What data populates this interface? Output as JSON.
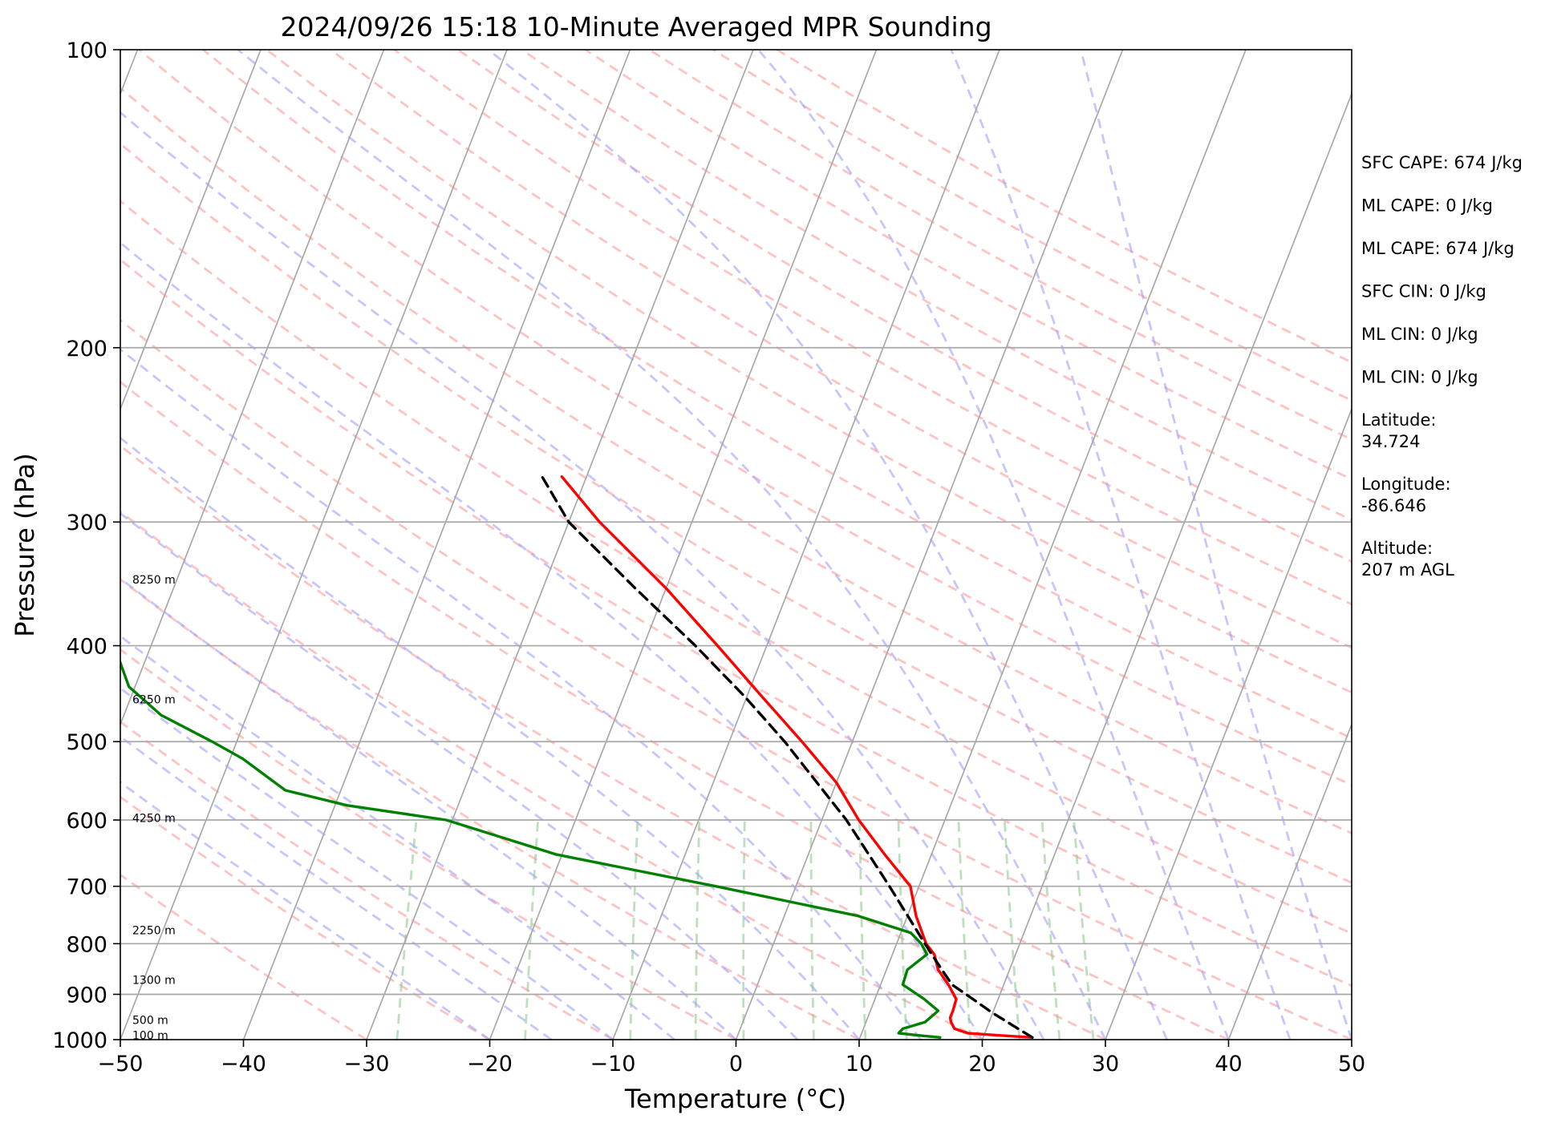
{
  "chart_data": {
    "type": "line",
    "subtype": "skew-T log-P sounding",
    "title": "2024/09/26 15:18 10-Minute Averaged MPR Sounding",
    "xlabel": "Temperature (°C)",
    "ylabel": "Pressure (hPa)",
    "xlim": [
      -50,
      50
    ],
    "ylim": [
      1000,
      100
    ],
    "y_scale": "log",
    "x_ticks": [
      "−50",
      "−40",
      "−30",
      "−20",
      "−10",
      "0",
      "10",
      "20",
      "30",
      "40",
      "50"
    ],
    "y_ticks": [
      "100",
      "200",
      "300",
      "400",
      "500",
      "600",
      "700",
      "800",
      "900",
      "1000"
    ],
    "grid": "horizontal lines at labelled pressures",
    "height_labels": [
      {
        "label": "100 m",
        "pressure": 990
      },
      {
        "label": "500 m",
        "pressure": 955
      },
      {
        "label": "1300 m",
        "pressure": 870
      },
      {
        "label": "2250 m",
        "pressure": 775
      },
      {
        "label": "4250 m",
        "pressure": 597
      },
      {
        "label": "6250 m",
        "pressure": 453
      },
      {
        "label": "8250 m",
        "pressure": 343
      }
    ],
    "info_panel": [
      "SFC CAPE: 674 J/kg",
      "ML CAPE: 0 J/kg",
      "ML CAPE: 674 J/kg",
      "SFC CIN: 0 J/kg",
      "ML CIN: 0 J/kg",
      "ML CIN: 0 J/kg",
      "Latitude:\n34.724",
      "Longitude:\n-86.646",
      "Altitude:\n207 m AGL"
    ],
    "series": [
      {
        "role": "temperature",
        "color": "#ff0000",
        "points": [
          [
            995,
            24.0
          ],
          [
            990,
            21.1
          ],
          [
            985,
            18.6
          ],
          [
            975,
            17.4
          ],
          [
            960,
            16.9
          ],
          [
            950,
            16.7
          ],
          [
            935,
            16.7
          ],
          [
            910,
            16.6
          ],
          [
            880,
            15.5
          ],
          [
            850,
            14.2
          ],
          [
            820,
            13.4
          ],
          [
            800,
            12.4
          ],
          [
            750,
            10.7
          ],
          [
            700,
            9.3
          ],
          [
            650,
            6.2
          ],
          [
            600,
            3.0
          ],
          [
            550,
            0.0
          ],
          [
            500,
            -4.1
          ],
          [
            450,
            -8.8
          ],
          [
            400,
            -14.0
          ],
          [
            350,
            -20.0
          ],
          [
            300,
            -27.5
          ],
          [
            270,
            -32.0
          ]
        ]
      },
      {
        "role": "dewpoint",
        "color": "#008000",
        "points": [
          [
            995,
            16.5
          ],
          [
            990,
            14.6
          ],
          [
            985,
            13.0
          ],
          [
            975,
            13.2
          ],
          [
            960,
            14.8
          ],
          [
            935,
            15.5
          ],
          [
            910,
            14.0
          ],
          [
            880,
            11.8
          ],
          [
            850,
            11.7
          ],
          [
            820,
            12.8
          ],
          [
            800,
            12.0
          ],
          [
            780,
            10.8
          ],
          [
            750,
            6.0
          ],
          [
            700,
            -6.5
          ],
          [
            650,
            -20.5
          ],
          [
            600,
            -30.5
          ],
          [
            580,
            -39.0
          ],
          [
            560,
            -44.5
          ],
          [
            520,
            -49.0
          ],
          [
            500,
            -52.0
          ],
          [
            470,
            -57.0
          ],
          [
            440,
            -60.5
          ],
          [
            400,
            -63.0
          ],
          [
            380,
            -65.0
          ],
          [
            350,
            -68.5
          ],
          [
            330,
            -70.0
          ],
          [
            310,
            -71.0
          ],
          [
            300,
            -74.0
          ],
          [
            285,
            -82.0
          ],
          [
            270,
            -86.0
          ],
          [
            265,
            -88.5
          ]
        ]
      },
      {
        "role": "parcel",
        "color": "#000000",
        "dashed": true,
        "points": [
          [
            995,
            24.0
          ],
          [
            940,
            20.0
          ],
          [
            905,
            17.6
          ],
          [
            880,
            15.8
          ],
          [
            850,
            14.5
          ],
          [
            800,
            12.3
          ],
          [
            700,
            7.6
          ],
          [
            600,
            2.0
          ],
          [
            500,
            -5.5
          ],
          [
            450,
            -10.2
          ],
          [
            400,
            -15.8
          ],
          [
            350,
            -22.5
          ],
          [
            300,
            -30.0
          ],
          [
            270,
            -33.6
          ]
        ]
      }
    ]
  }
}
